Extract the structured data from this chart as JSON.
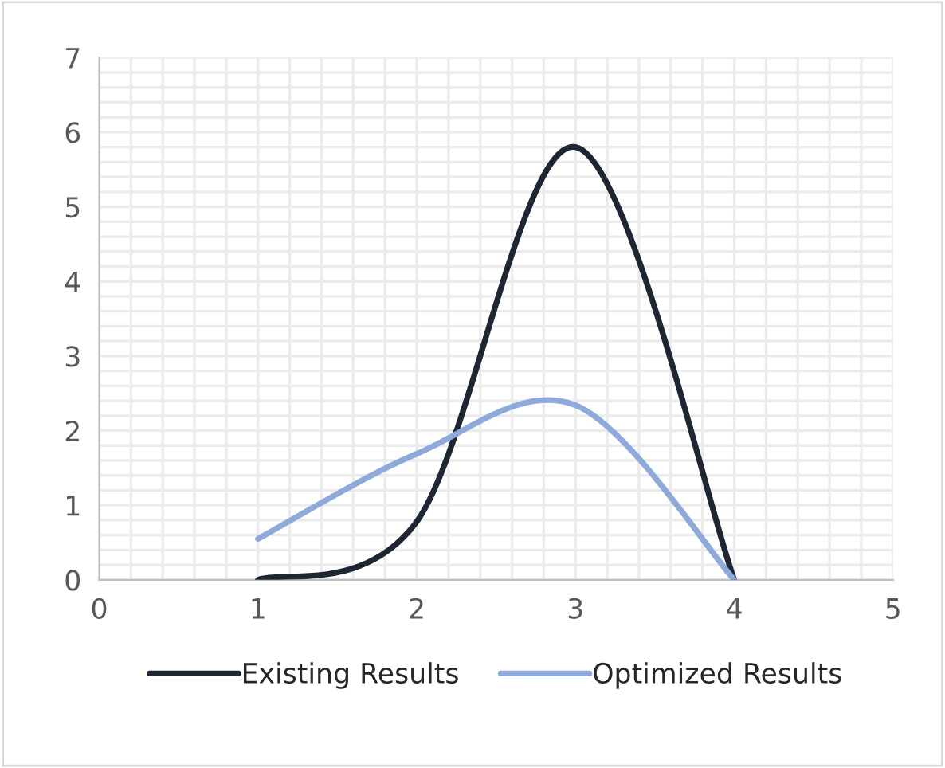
{
  "chart_data": {
    "type": "line",
    "x": [
      1,
      2,
      3,
      4
    ],
    "series": [
      {
        "name": "Existing Results",
        "color": "#1f2633",
        "values": [
          0,
          0.78,
          5.8,
          0
        ]
      },
      {
        "name": "Optimized Results",
        "color": "#8eaadb",
        "values": [
          0.55,
          1.69,
          2.34,
          0
        ]
      }
    ],
    "xlim": [
      0,
      5
    ],
    "xticks": [
      0,
      1,
      2,
      3,
      4,
      5
    ],
    "ylim": [
      0,
      7
    ],
    "yticks": [
      0,
      1,
      2,
      3,
      4,
      5,
      6,
      7
    ],
    "grid": true,
    "legend": "bottom",
    "marker": "none",
    "line_style": "solid"
  }
}
